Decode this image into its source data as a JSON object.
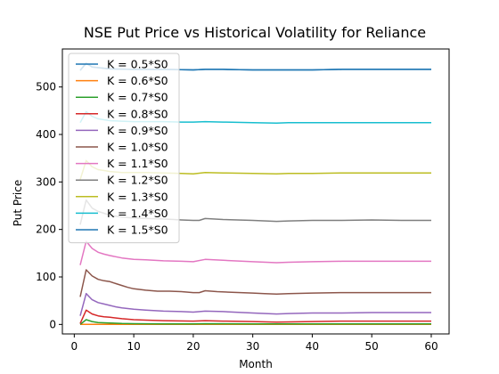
{
  "chart_data": {
    "type": "line",
    "title": "NSE Put Price vs Historical Volatility for Reliance",
    "xlabel": "Month",
    "ylabel": "Put Price",
    "xlim": [
      -2,
      63
    ],
    "ylim": [
      -20,
      580
    ],
    "xticks": [
      0,
      10,
      20,
      30,
      40,
      50,
      60
    ],
    "yticks": [
      0,
      100,
      200,
      300,
      400,
      500
    ],
    "grid": false,
    "legend_position": "upper-left",
    "series": [
      {
        "name": "K = 0.5*S0",
        "color": "#1f77b4",
        "x": [
          1,
          2,
          3,
          6,
          10,
          15,
          20,
          22,
          25,
          30,
          34,
          40,
          45,
          50,
          55,
          60
        ],
        "values": [
          535,
          550,
          542,
          538,
          537,
          537,
          536,
          537,
          537,
          536,
          536,
          536,
          537,
          537,
          537,
          537
        ]
      },
      {
        "name": "K = 0.6*S0",
        "color": "#ff7f0e",
        "x": [
          1,
          2,
          3,
          6,
          10,
          15,
          20,
          30,
          40,
          50,
          60
        ],
        "values": [
          0,
          0.3,
          0.2,
          0.1,
          0.1,
          0.1,
          0.1,
          0,
          0,
          0.1,
          0.1
        ]
      },
      {
        "name": "K = 0.7*S0",
        "color": "#2ca02c",
        "x": [
          1,
          2,
          3,
          4,
          6,
          8,
          10,
          15,
          20,
          22,
          30,
          40,
          50,
          60
        ],
        "values": [
          0,
          10,
          6,
          4,
          3,
          2,
          1.5,
          1.2,
          1,
          1.5,
          1,
          1,
          1.2,
          1.2
        ]
      },
      {
        "name": "K = 0.8*S0",
        "color": "#d62728",
        "x": [
          1,
          2,
          3,
          4,
          5,
          6,
          8,
          10,
          12,
          15,
          20,
          22,
          25,
          30,
          34,
          40,
          45,
          50,
          55,
          60
        ],
        "values": [
          2,
          30,
          22,
          18,
          16,
          15,
          12,
          10,
          9,
          8,
          7,
          8,
          7,
          6,
          5,
          6,
          7,
          7,
          7,
          7
        ]
      },
      {
        "name": "K = 0.9*S0",
        "color": "#9467bd",
        "x": [
          1,
          2,
          3,
          4,
          5,
          6,
          7,
          8,
          10,
          12,
          15,
          18,
          20,
          22,
          25,
          30,
          34,
          36,
          40,
          45,
          50,
          55,
          60
        ],
        "values": [
          18,
          65,
          52,
          46,
          43,
          40,
          37,
          35,
          32,
          30,
          28,
          27,
          26,
          28,
          27,
          24,
          22,
          23,
          24,
          24,
          25,
          25,
          25
        ]
      },
      {
        "name": "K = 1.0*S0",
        "color": "#8c564b",
        "x": [
          1,
          2,
          3,
          4,
          5,
          6,
          7,
          8,
          9,
          10,
          12,
          14,
          16,
          18,
          20,
          21,
          22,
          24,
          26,
          28,
          30,
          32,
          34,
          36,
          40,
          45,
          50,
          55,
          60
        ],
        "values": [
          58,
          115,
          102,
          95,
          92,
          90,
          86,
          82,
          78,
          75,
          72,
          70,
          70,
          69,
          67,
          67,
          71,
          69,
          68,
          67,
          66,
          65,
          64,
          65,
          66,
          67,
          67,
          67,
          67
        ]
      },
      {
        "name": "K = 1.1*S0",
        "color": "#e377c2",
        "x": [
          1,
          2,
          3,
          4,
          5,
          6,
          8,
          10,
          12,
          15,
          18,
          20,
          22,
          25,
          30,
          34,
          36,
          40,
          45,
          50,
          55,
          60
        ],
        "values": [
          125,
          175,
          160,
          152,
          148,
          145,
          140,
          137,
          136,
          134,
          133,
          132,
          137,
          135,
          132,
          130,
          131,
          132,
          133,
          133,
          133,
          133
        ]
      },
      {
        "name": "K = 1.2*S0",
        "color": "#7f7f7f",
        "x": [
          1,
          2,
          3,
          4,
          5,
          6,
          8,
          10,
          12,
          15,
          18,
          20,
          21,
          22,
          25,
          30,
          34,
          36,
          40,
          45,
          50,
          55,
          60
        ],
        "values": [
          210,
          262,
          245,
          238,
          234,
          230,
          226,
          224,
          223,
          222,
          220,
          219,
          219,
          223,
          221,
          219,
          217,
          218,
          219,
          219,
          220,
          219,
          219
        ]
      },
      {
        "name": "K = 1.3*S0",
        "color": "#bcbd22",
        "x": [
          1,
          2,
          3,
          4,
          5,
          6,
          8,
          10,
          12,
          15,
          18,
          20,
          22,
          25,
          30,
          34,
          36,
          40,
          45,
          50,
          55,
          60
        ],
        "values": [
          305,
          345,
          332,
          326,
          324,
          322,
          320,
          320,
          320,
          319,
          318,
          317,
          320,
          319,
          318,
          317,
          318,
          318,
          319,
          319,
          319,
          319
        ]
      },
      {
        "name": "K = 1.4*S0",
        "color": "#17becf",
        "x": [
          1,
          2,
          3,
          4,
          5,
          6,
          8,
          10,
          12,
          15,
          18,
          20,
          22,
          25,
          30,
          34,
          36,
          40,
          45,
          50,
          55,
          60
        ],
        "values": [
          425,
          448,
          438,
          433,
          431,
          429,
          428,
          427,
          427,
          427,
          426,
          426,
          427,
          426,
          425,
          424,
          425,
          425,
          425,
          425,
          425,
          425
        ]
      },
      {
        "name": "K = 1.5*S0",
        "color": "#1f77b4",
        "x": [
          1,
          2,
          3,
          6,
          10,
          15,
          20,
          22,
          25,
          30,
          34,
          40,
          45,
          50,
          55,
          60
        ],
        "values": [
          535,
          550,
          542,
          538,
          537,
          537,
          536,
          537,
          537,
          536,
          536,
          536,
          537,
          537,
          537,
          537
        ]
      }
    ]
  }
}
